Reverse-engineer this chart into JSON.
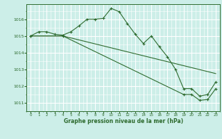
{
  "title": "Graphe pression niveau de la mer (hPa)",
  "background_color": "#cceee8",
  "grid_color": "#ffffff",
  "line_color": "#2d6a2d",
  "xlim": [
    -0.5,
    23.5
  ],
  "ylim": [
    1010.5,
    1016.9
  ],
  "yticks": [
    1011,
    1012,
    1013,
    1014,
    1015,
    1016
  ],
  "xticks": [
    0,
    1,
    2,
    3,
    4,
    5,
    6,
    7,
    8,
    9,
    10,
    11,
    12,
    13,
    14,
    15,
    16,
    17,
    18,
    19,
    20,
    21,
    22,
    23
  ],
  "series1_x": [
    0,
    1,
    2,
    3,
    4,
    5,
    6,
    7,
    8,
    9,
    10,
    11,
    12,
    13,
    14,
    15,
    16,
    17,
    18,
    19,
    20,
    21,
    22,
    23
  ],
  "series1_y": [
    1015.0,
    1015.25,
    1015.25,
    1015.1,
    1015.05,
    1015.25,
    1015.6,
    1016.0,
    1016.0,
    1016.05,
    1016.65,
    1016.45,
    1015.75,
    1015.1,
    1014.55,
    1015.0,
    1014.35,
    1013.75,
    1013.0,
    1011.85,
    1011.85,
    1011.4,
    1011.5,
    1012.25
  ],
  "series2_x": [
    0,
    4,
    23
  ],
  "series2_y": [
    1015.0,
    1015.0,
    1012.75
  ],
  "series3_x": [
    0,
    4,
    19,
    20,
    21,
    22,
    23
  ],
  "series3_y": [
    1015.0,
    1015.0,
    1011.5,
    1011.5,
    1011.15,
    1011.2,
    1011.85
  ]
}
